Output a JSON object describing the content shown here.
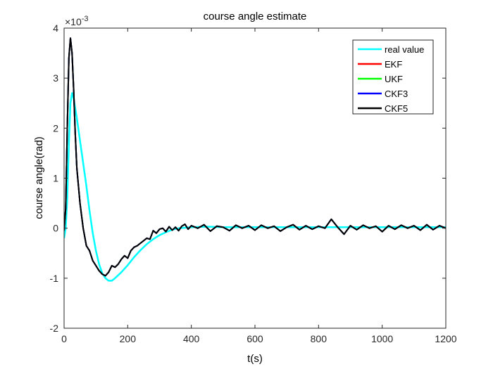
{
  "chart_data": {
    "type": "line",
    "title": "course angle estimate",
    "xlabel": "t(s)",
    "ylabel": "course angle(rad)",
    "exponent_base": "×10",
    "exponent_power": "-3",
    "xlim": [
      0,
      1200
    ],
    "ylim": [
      -2,
      4
    ],
    "xticks": [
      0,
      200,
      400,
      600,
      800,
      1000,
      1200
    ],
    "xtick_labels": [
      "0",
      "200",
      "400",
      "600",
      "800",
      "1000",
      "1200"
    ],
    "yticks": [
      -2,
      -1,
      0,
      1,
      2,
      3,
      4
    ],
    "ytick_labels": [
      "-2",
      "-1",
      "0",
      "1",
      "2",
      "3",
      "4"
    ],
    "grid": false,
    "legend_position": "top-right",
    "y_scale_note": "values in units of 1e-3 rad",
    "series": [
      {
        "name": "real value",
        "color": "#00FFFF",
        "x": [
          0,
          5,
          10,
          15,
          20,
          25,
          30,
          35,
          40,
          50,
          60,
          70,
          80,
          90,
          100,
          110,
          120,
          130,
          140,
          150,
          160,
          180,
          200,
          220,
          240,
          260,
          280,
          300,
          320,
          340,
          360,
          380,
          400,
          450,
          500,
          600,
          700,
          800,
          900,
          1000,
          1100,
          1200
        ],
        "y": [
          -0.2,
          0.0,
          0.6,
          1.7,
          2.5,
          2.7,
          2.6,
          2.4,
          2.2,
          1.75,
          1.3,
          0.85,
          0.35,
          -0.1,
          -0.45,
          -0.72,
          -0.9,
          -1.0,
          -1.05,
          -1.05,
          -1.0,
          -0.88,
          -0.74,
          -0.58,
          -0.44,
          -0.32,
          -0.22,
          -0.14,
          -0.08,
          -0.03,
          0.0,
          0.01,
          0.02,
          0.03,
          0.02,
          0.02,
          0.02,
          0.02,
          0.02,
          0.02,
          0.02,
          0.02
        ]
      },
      {
        "name": "EKF",
        "color": "#FF0000",
        "x": [
          0,
          5,
          10,
          15,
          20,
          25,
          30,
          35,
          40,
          50,
          60,
          70,
          80,
          90,
          100,
          110,
          120,
          130,
          140,
          150,
          160,
          170,
          180,
          190,
          200,
          210,
          220,
          230,
          240,
          250,
          260,
          270,
          280,
          290,
          300,
          310,
          320,
          330,
          340,
          350,
          360,
          370,
          380,
          390,
          400,
          420,
          440,
          460,
          480,
          500,
          520,
          540,
          560,
          580,
          600,
          620,
          640,
          660,
          680,
          700,
          720,
          740,
          760,
          780,
          800,
          820,
          840,
          860,
          880,
          900,
          920,
          940,
          960,
          980,
          1000,
          1020,
          1040,
          1060,
          1080,
          1100,
          1120,
          1140,
          1160,
          1180,
          1200
        ],
        "y": [
          -0.05,
          0.4,
          2.0,
          3.4,
          3.8,
          3.5,
          2.8,
          1.9,
          1.2,
          0.5,
          0.0,
          -0.35,
          -0.45,
          -0.65,
          -0.75,
          -0.85,
          -0.92,
          -0.95,
          -0.88,
          -0.75,
          -0.78,
          -0.72,
          -0.62,
          -0.55,
          -0.6,
          -0.45,
          -0.38,
          -0.35,
          -0.3,
          -0.25,
          -0.2,
          -0.22,
          -0.05,
          -0.1,
          -0.02,
          0.0,
          -0.07,
          0.03,
          -0.04,
          0.02,
          -0.05,
          0.04,
          0.08,
          -0.02,
          0.05,
          0.0,
          0.07,
          -0.06,
          0.04,
          0.02,
          -0.05,
          0.06,
          0.0,
          0.05,
          -0.04,
          0.06,
          0.0,
          0.04,
          -0.06,
          0.02,
          0.07,
          -0.03,
          0.05,
          -0.02,
          0.04,
          0.0,
          0.18,
          0.02,
          -0.12,
          0.05,
          -0.03,
          0.06,
          0.0,
          0.04,
          -0.07,
          0.05,
          -0.02,
          0.06,
          0.0,
          0.05,
          -0.04,
          0.07,
          -0.03,
          0.05,
          0.0
        ]
      },
      {
        "name": "UKF",
        "color": "#00FF00",
        "x": [
          0,
          5,
          10,
          15,
          20,
          25,
          30,
          35,
          40,
          50,
          60,
          70,
          80,
          90,
          100,
          110,
          120,
          130,
          140,
          150,
          160,
          170,
          180,
          190,
          200,
          210,
          220,
          230,
          240,
          250,
          260,
          270,
          280,
          290,
          300,
          310,
          320,
          330,
          340,
          350,
          360,
          370,
          380,
          390,
          400,
          420,
          440,
          460,
          480,
          500,
          520,
          540,
          560,
          580,
          600,
          620,
          640,
          660,
          680,
          700,
          720,
          740,
          760,
          780,
          800,
          820,
          840,
          860,
          880,
          900,
          920,
          940,
          960,
          980,
          1000,
          1020,
          1040,
          1060,
          1080,
          1100,
          1120,
          1140,
          1160,
          1180,
          1200
        ],
        "y": [
          -0.05,
          0.4,
          2.0,
          3.4,
          3.8,
          3.5,
          2.8,
          1.9,
          1.2,
          0.5,
          0.0,
          -0.35,
          -0.45,
          -0.65,
          -0.75,
          -0.85,
          -0.92,
          -0.95,
          -0.88,
          -0.75,
          -0.78,
          -0.72,
          -0.62,
          -0.55,
          -0.6,
          -0.45,
          -0.38,
          -0.35,
          -0.3,
          -0.25,
          -0.2,
          -0.22,
          -0.05,
          -0.1,
          -0.02,
          0.0,
          -0.07,
          0.03,
          -0.04,
          0.02,
          -0.05,
          0.04,
          0.08,
          -0.02,
          0.05,
          0.0,
          0.07,
          -0.06,
          0.04,
          0.02,
          -0.05,
          0.06,
          0.0,
          0.05,
          -0.04,
          0.06,
          0.0,
          0.04,
          -0.06,
          0.02,
          0.07,
          -0.03,
          0.05,
          -0.02,
          0.04,
          0.0,
          0.18,
          0.02,
          -0.12,
          0.05,
          -0.03,
          0.06,
          0.0,
          0.04,
          -0.07,
          0.05,
          -0.02,
          0.06,
          0.0,
          0.05,
          -0.04,
          0.07,
          -0.03,
          0.05,
          0.0
        ]
      },
      {
        "name": "CKF3",
        "color": "#0000FF",
        "x": [
          0,
          5,
          10,
          15,
          20,
          25,
          30,
          35,
          40,
          50,
          60,
          70,
          80,
          90,
          100,
          110,
          120,
          130,
          140,
          150,
          160,
          170,
          180,
          190,
          200,
          210,
          220,
          230,
          240,
          250,
          260,
          270,
          280,
          290,
          300,
          310,
          320,
          330,
          340,
          350,
          360,
          370,
          380,
          390,
          400,
          420,
          440,
          460,
          480,
          500,
          520,
          540,
          560,
          580,
          600,
          620,
          640,
          660,
          680,
          700,
          720,
          740,
          760,
          780,
          800,
          820,
          840,
          860,
          880,
          900,
          920,
          940,
          960,
          980,
          1000,
          1020,
          1040,
          1060,
          1080,
          1100,
          1120,
          1140,
          1160,
          1180,
          1200
        ],
        "y": [
          -0.05,
          0.4,
          2.0,
          3.4,
          3.8,
          3.5,
          2.8,
          1.9,
          1.2,
          0.5,
          0.0,
          -0.35,
          -0.45,
          -0.65,
          -0.75,
          -0.85,
          -0.92,
          -0.95,
          -0.88,
          -0.75,
          -0.78,
          -0.72,
          -0.62,
          -0.55,
          -0.6,
          -0.45,
          -0.38,
          -0.35,
          -0.3,
          -0.25,
          -0.2,
          -0.22,
          -0.05,
          -0.1,
          -0.02,
          0.0,
          -0.07,
          0.03,
          -0.04,
          0.02,
          -0.05,
          0.04,
          0.08,
          -0.02,
          0.05,
          0.0,
          0.07,
          -0.06,
          0.04,
          0.02,
          -0.05,
          0.06,
          0.0,
          0.05,
          -0.04,
          0.06,
          0.0,
          0.04,
          -0.06,
          0.02,
          0.07,
          -0.03,
          0.05,
          -0.02,
          0.04,
          0.0,
          0.18,
          0.02,
          -0.12,
          0.05,
          -0.03,
          0.06,
          0.0,
          0.04,
          -0.07,
          0.05,
          -0.02,
          0.06,
          0.0,
          0.05,
          -0.04,
          0.07,
          -0.03,
          0.05,
          0.0
        ]
      },
      {
        "name": "CKF5",
        "color": "#000000",
        "x": [
          0,
          5,
          10,
          15,
          20,
          25,
          30,
          35,
          40,
          50,
          60,
          70,
          80,
          90,
          100,
          110,
          120,
          130,
          140,
          150,
          160,
          170,
          180,
          190,
          200,
          210,
          220,
          230,
          240,
          250,
          260,
          270,
          280,
          290,
          300,
          310,
          320,
          330,
          340,
          350,
          360,
          370,
          380,
          390,
          400,
          420,
          440,
          460,
          480,
          500,
          520,
          540,
          560,
          580,
          600,
          620,
          640,
          660,
          680,
          700,
          720,
          740,
          760,
          780,
          800,
          820,
          840,
          860,
          880,
          900,
          920,
          940,
          960,
          980,
          1000,
          1020,
          1040,
          1060,
          1080,
          1100,
          1120,
          1140,
          1160,
          1180,
          1200
        ],
        "y": [
          -0.05,
          0.4,
          2.0,
          3.4,
          3.8,
          3.5,
          2.8,
          1.9,
          1.2,
          0.5,
          0.0,
          -0.35,
          -0.45,
          -0.65,
          -0.75,
          -0.85,
          -0.92,
          -0.95,
          -0.88,
          -0.75,
          -0.78,
          -0.72,
          -0.62,
          -0.55,
          -0.6,
          -0.45,
          -0.38,
          -0.35,
          -0.3,
          -0.25,
          -0.2,
          -0.22,
          -0.05,
          -0.1,
          -0.02,
          0.0,
          -0.07,
          0.03,
          -0.04,
          0.02,
          -0.05,
          0.04,
          0.08,
          -0.02,
          0.05,
          0.0,
          0.07,
          -0.06,
          0.04,
          0.02,
          -0.05,
          0.06,
          0.0,
          0.05,
          -0.04,
          0.06,
          0.0,
          0.04,
          -0.06,
          0.02,
          0.07,
          -0.03,
          0.05,
          -0.02,
          0.04,
          0.0,
          0.18,
          0.02,
          -0.12,
          0.05,
          -0.03,
          0.06,
          0.0,
          0.04,
          -0.07,
          0.05,
          -0.02,
          0.06,
          0.0,
          0.05,
          -0.04,
          0.07,
          -0.03,
          0.05,
          0.0
        ]
      }
    ]
  }
}
